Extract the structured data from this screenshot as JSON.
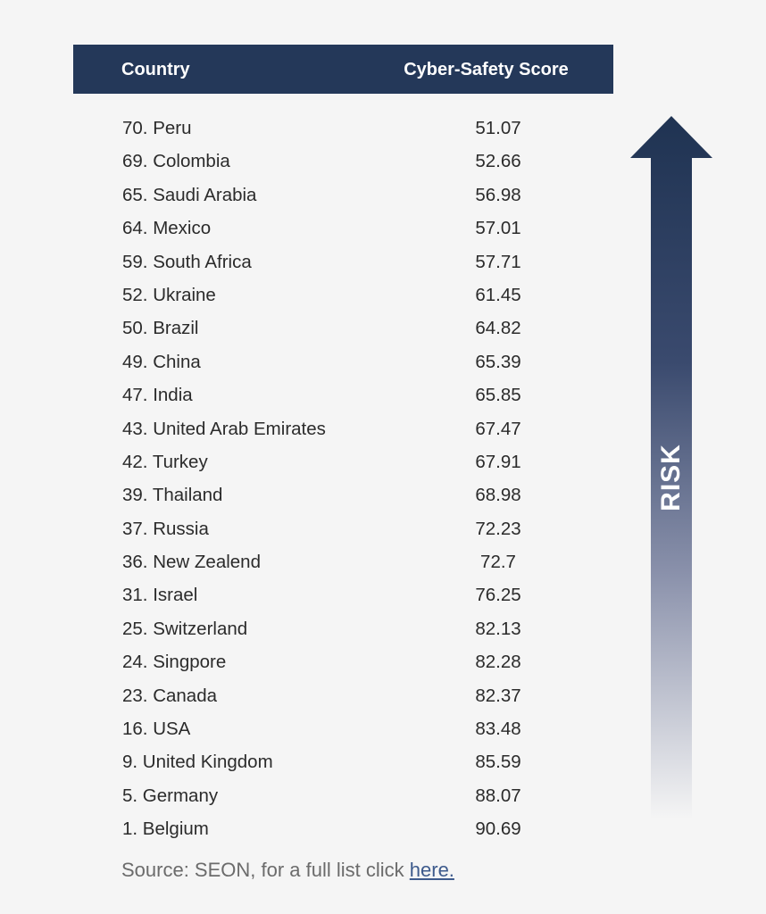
{
  "chart_data": {
    "type": "table",
    "columns": [
      "Country",
      "Cyber-Safety Score"
    ],
    "rows": [
      {
        "country": "70. Peru",
        "score": "51.07"
      },
      {
        "country": "69. Colombia",
        "score": "52.66"
      },
      {
        "country": "65. Saudi Arabia",
        "score": "56.98"
      },
      {
        "country": "64. Mexico",
        "score": "57.01"
      },
      {
        "country": "59. South Africa",
        "score": "57.71"
      },
      {
        "country": "52. Ukraine",
        "score": "61.45"
      },
      {
        "country": "50. Brazil",
        "score": "64.82"
      },
      {
        "country": "49. China",
        "score": "65.39"
      },
      {
        "country": "47. India",
        "score": "65.85"
      },
      {
        "country": "43. United Arab Emirates",
        "score": "67.47"
      },
      {
        "country": "42. Turkey",
        "score": "67.91"
      },
      {
        "country": "39. Thailand",
        "score": "68.98"
      },
      {
        "country": "37. Russia",
        "score": "72.23"
      },
      {
        "country": "36. New Zealend",
        "score": "72.7"
      },
      {
        "country": "31. Israel",
        "score": "76.25"
      },
      {
        "country": "25. Switzerland",
        "score": "82.13"
      },
      {
        "country": "24. Singpore",
        "score": "82.28"
      },
      {
        "country": "23. Canada",
        "score": "82.37"
      },
      {
        "country": "16. USA",
        "score": "83.48"
      },
      {
        "country": "9. United Kingdom",
        "score": "85.59"
      },
      {
        "country": "5. Germany",
        "score": "88.07"
      },
      {
        "country": "1. Belgium",
        "score": "90.69"
      }
    ],
    "arrow_label": "RISK"
  },
  "source": {
    "text": "Source: SEON, for a full list click ",
    "link_text": "here."
  },
  "colors": {
    "header_bg": "#243859",
    "arrow_top": "#1f3352",
    "link": "#3d5a8c"
  }
}
